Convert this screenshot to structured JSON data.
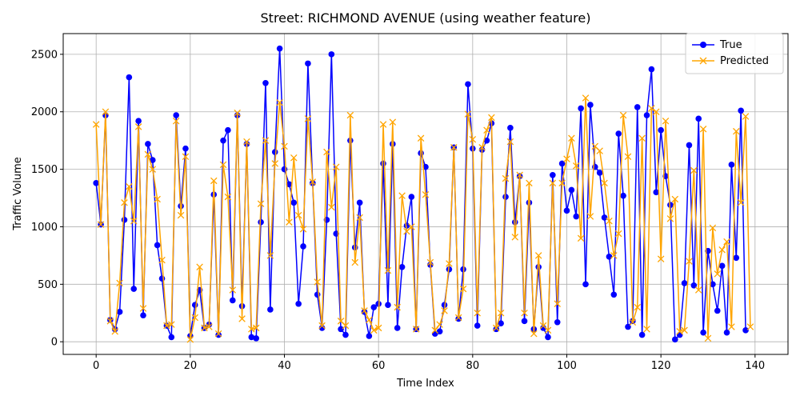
{
  "chart_data": {
    "type": "line",
    "title": "Street: RICHMOND AVENUE (using weather feature)",
    "xlabel": "Time Index",
    "ylabel": "Traffic Volume",
    "xlim": [
      -7,
      147
    ],
    "ylim": [
      -110,
      2680
    ],
    "xticks": [
      0,
      20,
      40,
      60,
      80,
      100,
      120,
      140
    ],
    "yticks": [
      0,
      500,
      1000,
      1500,
      2000,
      2500
    ],
    "grid": true,
    "legend_position": "top-right",
    "series": [
      {
        "name": "True",
        "color": "#0000ff",
        "marker": "circle",
        "values": [
          1380,
          1020,
          1970,
          190,
          110,
          260,
          1060,
          2300,
          460,
          1920,
          230,
          1720,
          1580,
          840,
          550,
          140,
          40,
          1970,
          1180,
          1680,
          50,
          320,
          450,
          120,
          150,
          1280,
          60,
          1750,
          1840,
          360,
          1970,
          310,
          1720,
          40,
          30,
          1040,
          2250,
          280,
          1650,
          2550,
          1500,
          1370,
          1210,
          330,
          830,
          2420,
          1380,
          410,
          120,
          1060,
          2500,
          940,
          110,
          60,
          1750,
          820,
          1210,
          260,
          50,
          300,
          330,
          1550,
          320,
          1720,
          120,
          650,
          1010,
          1260,
          110,
          1640,
          1520,
          670,
          70,
          90,
          320,
          630,
          1690,
          200,
          630,
          2240,
          1680,
          140,
          1670,
          1750,
          1900,
          110,
          160,
          1260,
          1860,
          1040,
          1440,
          180,
          1210,
          110,
          650,
          120,
          40,
          1450,
          170,
          1550,
          1140,
          1320,
          1090,
          2030,
          500,
          2060,
          1520,
          1470,
          1080,
          740,
          410,
          1810,
          1270,
          130,
          180,
          2040,
          60,
          1970,
          2370,
          1300,
          1840,
          1440,
          1190,
          20,
          60,
          510,
          1710,
          490,
          1940,
          80,
          790,
          500,
          270,
          660,
          80,
          1540,
          730,
          2010,
          100
        ]
      },
      {
        "name": "Predicted",
        "color": "#ffa500",
        "marker": "x",
        "values": [
          1890,
          1020,
          2000,
          180,
          90,
          510,
          1210,
          1350,
          1050,
          1870,
          290,
          1630,
          1500,
          1240,
          710,
          140,
          150,
          1920,
          1100,
          1610,
          20,
          210,
          650,
          120,
          130,
          1400,
          70,
          1540,
          1260,
          450,
          1990,
          200,
          1740,
          110,
          120,
          1200,
          1750,
          750,
          1550,
          2080,
          1700,
          1040,
          1600,
          1100,
          980,
          1940,
          1390,
          520,
          140,
          1650,
          1170,
          1520,
          180,
          140,
          1970,
          690,
          1080,
          270,
          190,
          100,
          120,
          1890,
          620,
          1910,
          300,
          1270,
          960,
          1000,
          110,
          1770,
          1280,
          690,
          100,
          150,
          270,
          680,
          1690,
          210,
          460,
          1980,
          1760,
          250,
          1690,
          1840,
          1950,
          120,
          250,
          1420,
          1740,
          910,
          1450,
          250,
          1380,
          70,
          750,
          140,
          100,
          1380,
          330,
          1380,
          1590,
          1770,
          1530,
          900,
          2120,
          1090,
          1700,
          1660,
          1380,
          1050,
          750,
          940,
          1970,
          1610,
          170,
          300,
          1770,
          110,
          2030,
          2000,
          720,
          1920,
          1070,
          1240,
          90,
          100,
          700,
          1490,
          450,
          1850,
          30,
          990,
          590,
          800,
          870,
          130,
          1830,
          1210,
          1960,
          130
        ]
      }
    ]
  }
}
